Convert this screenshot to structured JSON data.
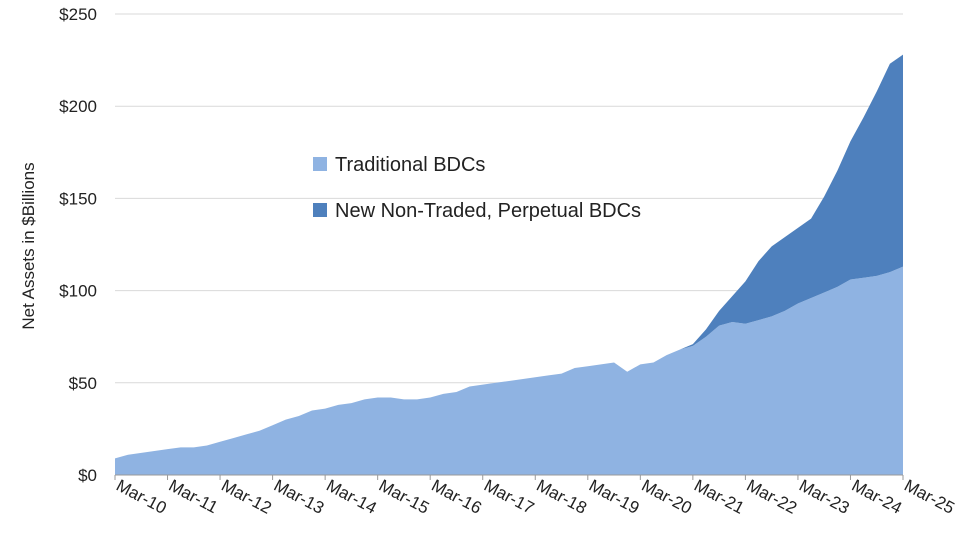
{
  "chart_data": {
    "type": "area",
    "stacked": true,
    "title": "",
    "xlabel": "",
    "ylabel": "Net Assets in $Billions",
    "ylim": [
      0,
      250
    ],
    "yticks": [
      0,
      50,
      100,
      150,
      200,
      250
    ],
    "ytick_labels": [
      "$0",
      "$50",
      "$100",
      "$150",
      "$200",
      "$250"
    ],
    "xlim": [
      2010,
      2025
    ],
    "xticks": [
      2010,
      2011,
      2012,
      2013,
      2014,
      2015,
      2016,
      2017,
      2018,
      2019,
      2020,
      2021,
      2022,
      2023,
      2024,
      2025
    ],
    "xtick_labels": [
      "Mar-10",
      "Mar-11",
      "Mar-12",
      "Mar-13",
      "Mar-14",
      "Mar-15",
      "Mar-16",
      "Mar-17",
      "Mar-18",
      "Mar-19",
      "Mar-20",
      "Mar-21",
      "Mar-22",
      "Mar-23",
      "Mar-24",
      "Mar-25"
    ],
    "grid": "horizontal",
    "legend_position": "center-left",
    "x": [
      2010,
      2010.25,
      2010.5,
      2010.75,
      2011,
      2011.25,
      2011.5,
      2011.75,
      2012,
      2012.25,
      2012.5,
      2012.75,
      2013,
      2013.25,
      2013.5,
      2013.75,
      2014,
      2014.25,
      2014.5,
      2014.75,
      2015,
      2015.25,
      2015.5,
      2015.75,
      2016,
      2016.25,
      2016.5,
      2016.75,
      2017,
      2017.25,
      2017.5,
      2017.75,
      2018,
      2018.25,
      2018.5,
      2018.75,
      2019,
      2019.25,
      2019.5,
      2019.75,
      2020,
      2020.25,
      2020.5,
      2020.75,
      2021,
      2021.25,
      2021.5,
      2021.75,
      2022,
      2022.25,
      2022.5,
      2022.75,
      2023,
      2023.25,
      2023.5,
      2023.75,
      2024,
      2024.25,
      2024.5,
      2024.75,
      2025
    ],
    "series": [
      {
        "name": "Traditional BDCs",
        "color": "#8fb3e2",
        "values": [
          9,
          11,
          12,
          13,
          14,
          15,
          15,
          16,
          18,
          20,
          22,
          24,
          27,
          30,
          32,
          35,
          36,
          38,
          39,
          41,
          42,
          42,
          41,
          41,
          42,
          44,
          45,
          48,
          49,
          50,
          51,
          52,
          53,
          54,
          55,
          58,
          59,
          60,
          61,
          56,
          60,
          61,
          65,
          68,
          70,
          75,
          81,
          83,
          82,
          84,
          86,
          89,
          93,
          96,
          99,
          102,
          106,
          107,
          108,
          110,
          113
        ]
      },
      {
        "name": "New Non-Traded, Perpetual BDCs",
        "color": "#4e80bd",
        "values": [
          0,
          0,
          0,
          0,
          0,
          0,
          0,
          0,
          0,
          0,
          0,
          0,
          0,
          0,
          0,
          0,
          0,
          0,
          0,
          0,
          0,
          0,
          0,
          0,
          0,
          0,
          0,
          0,
          0,
          0,
          0,
          0,
          0,
          0,
          0,
          0,
          0,
          0,
          0,
          0,
          0,
          0,
          0,
          0,
          1,
          4,
          8,
          14,
          23,
          32,
          38,
          40,
          41,
          43,
          52,
          63,
          75,
          87,
          100,
          113,
          115
        ]
      }
    ]
  }
}
